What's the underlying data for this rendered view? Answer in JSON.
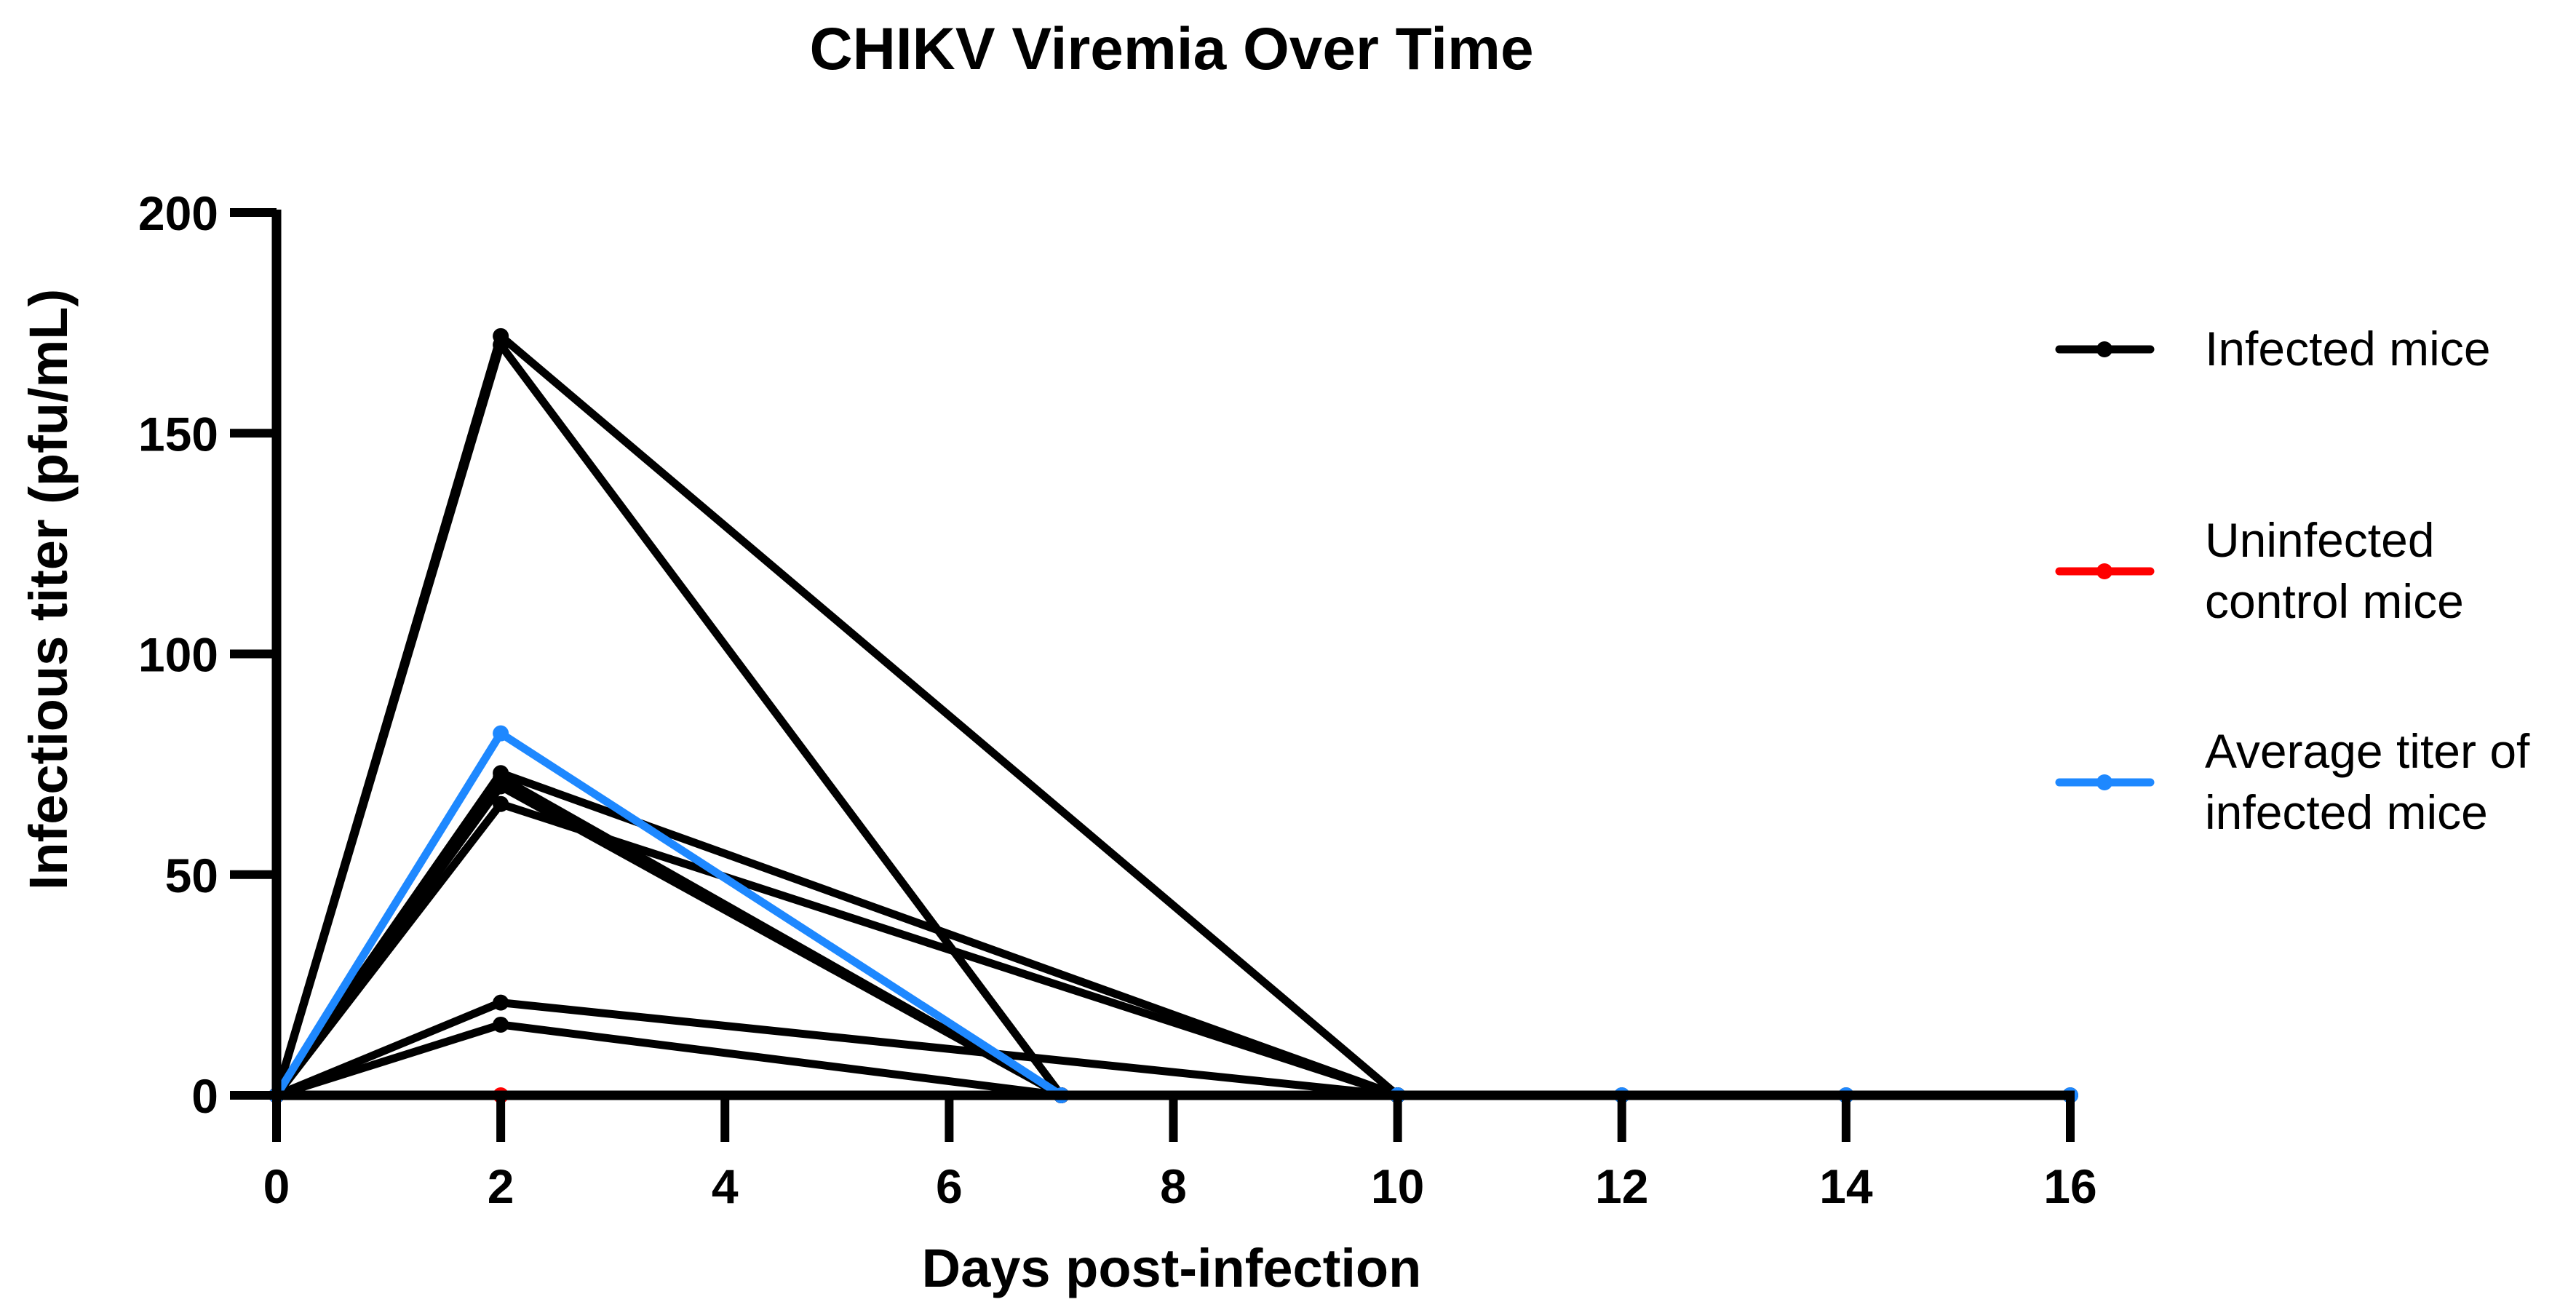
{
  "chart_data": {
    "type": "line",
    "title": "CHIKV Viremia Over Time",
    "xlabel": "Days post-infection",
    "ylabel": "Infectious titer (pfu/mL)",
    "xlim": [
      0,
      16
    ],
    "ylim": [
      0,
      200
    ],
    "xticks": [
      0,
      2,
      4,
      6,
      8,
      10,
      12,
      14,
      16
    ],
    "yticks": [
      0,
      50,
      100,
      150,
      200
    ],
    "xtick_labels": [
      "0",
      "2",
      "4",
      "6",
      "8",
      "10",
      "12",
      "14",
      "16"
    ],
    "ytick_labels": [
      "0",
      "50",
      "100",
      "150",
      "200"
    ],
    "grid": false,
    "legend_position": "right",
    "colors": {
      "infected": "#000000",
      "uninfected": "#ff0000",
      "average": "#1e88ff"
    },
    "series": [
      {
        "name": "Infected mice",
        "group": "infected",
        "x": [
          0,
          2,
          10
        ],
        "y": [
          0,
          172,
          0
        ]
      },
      {
        "name": "Infected mice",
        "group": "infected",
        "x": [
          0,
          2,
          7
        ],
        "y": [
          0,
          170,
          0
        ]
      },
      {
        "name": "Infected mice",
        "group": "infected",
        "x": [
          0,
          2,
          10
        ],
        "y": [
          0,
          73,
          0
        ]
      },
      {
        "name": "Infected mice",
        "group": "infected",
        "x": [
          0,
          2,
          7
        ],
        "y": [
          0,
          72,
          0
        ]
      },
      {
        "name": "Infected mice",
        "group": "infected",
        "x": [
          0,
          2,
          7
        ],
        "y": [
          0,
          70,
          0
        ]
      },
      {
        "name": "Infected mice",
        "group": "infected",
        "x": [
          0,
          2,
          10
        ],
        "y": [
          0,
          66,
          0
        ]
      },
      {
        "name": "Infected mice",
        "group": "infected",
        "x": [
          0,
          2,
          10
        ],
        "y": [
          0,
          21,
          0
        ]
      },
      {
        "name": "Infected mice",
        "group": "infected",
        "x": [
          0,
          2,
          7
        ],
        "y": [
          0,
          16,
          0
        ]
      },
      {
        "name": "Uninfected control mice",
        "group": "uninfected",
        "x": [
          0,
          2,
          7
        ],
        "y": [
          0,
          0,
          0
        ]
      },
      {
        "name": "Infected mice",
        "group": "infected",
        "x": [
          7,
          10,
          12,
          14,
          16
        ],
        "y": [
          0,
          0,
          0,
          0,
          0
        ]
      },
      {
        "name": "Average titer of infected mice",
        "group": "average",
        "x": [
          0,
          2,
          7,
          10,
          12,
          14,
          16
        ],
        "y": [
          0,
          82,
          0,
          0,
          0,
          0,
          0
        ]
      }
    ],
    "legend": [
      {
        "group": "infected",
        "lines": [
          "Infected mice"
        ]
      },
      {
        "group": "uninfected",
        "lines": [
          "Uninfected",
          "control mice"
        ]
      },
      {
        "group": "average",
        "lines": [
          "Average titer of",
          "infected mice"
        ]
      }
    ]
  }
}
